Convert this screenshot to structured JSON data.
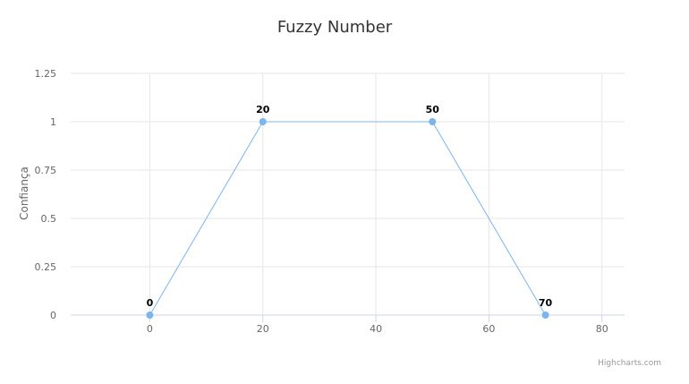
{
  "chart_data": {
    "type": "line",
    "title": "Fuzzy Number",
    "xlabel": "",
    "ylabel": "Confiança",
    "xlim": [
      -14,
      84
    ],
    "ylim": [
      0,
      1.25
    ],
    "x_ticks": [
      0,
      20,
      40,
      60,
      80
    ],
    "y_ticks": [
      0,
      0.25,
      0.5,
      0.75,
      1,
      1.25
    ],
    "y_tick_labels": [
      "0",
      "0.25",
      "0.5",
      "0.75",
      "1",
      "1.25"
    ],
    "grid": true,
    "series": [
      {
        "x": [
          0,
          20,
          50,
          70
        ],
        "y": [
          0,
          1,
          1,
          0
        ],
        "data_labels": [
          "0",
          "20",
          "50",
          "70"
        ],
        "color": "#7cb5ec"
      }
    ],
    "credits": "Highcharts.com"
  }
}
